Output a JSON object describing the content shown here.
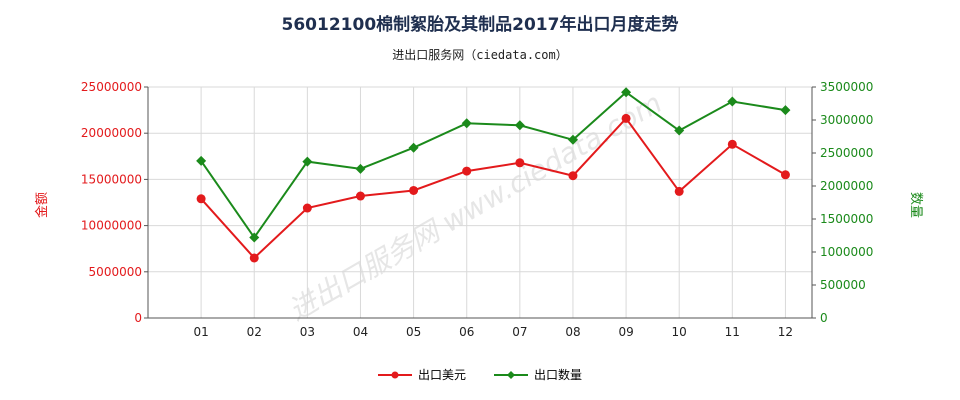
{
  "title": "56012100棉制絮胎及其制品2017年出口月度走势",
  "source": "进出口服务网（ciedata.com）",
  "watermark": "进出口服务网 www.ciedata.com",
  "colors": {
    "usd": "#e31a1c",
    "qty": "#1b8a1b",
    "grid": "#d9d9d9",
    "axis": "#555555"
  },
  "chart_data": {
    "type": "line",
    "categories": [
      "01",
      "02",
      "03",
      "04",
      "05",
      "06",
      "07",
      "08",
      "09",
      "10",
      "11",
      "12"
    ],
    "series": [
      {
        "name": "出口美元",
        "axis": "left",
        "color": "#e31a1c",
        "marker": "circle",
        "values": [
          12900000,
          6500000,
          11900000,
          13200000,
          13800000,
          15900000,
          16800000,
          15400000,
          21600000,
          13700000,
          18800000,
          15500000
        ]
      },
      {
        "name": "出口数量",
        "axis": "right",
        "color": "#1b8a1b",
        "marker": "diamond",
        "values": [
          2380000,
          1220000,
          2370000,
          2260000,
          2580000,
          2950000,
          2920000,
          2700000,
          3420000,
          2840000,
          3280000,
          3150000
        ]
      }
    ],
    "y_left": {
      "label": "金额",
      "min": 0,
      "max": 25000000,
      "ticks": [
        "0",
        "5000000",
        "10000000",
        "15000000",
        "20000000",
        "25000000"
      ]
    },
    "y_right": {
      "label": "数量",
      "min": 0,
      "max": 3500000,
      "ticks": [
        "0",
        "500000",
        "1000000",
        "1500000",
        "2000000",
        "2500000",
        "3000000",
        "3500000"
      ]
    },
    "grid": true,
    "legend_position": "bottom"
  }
}
